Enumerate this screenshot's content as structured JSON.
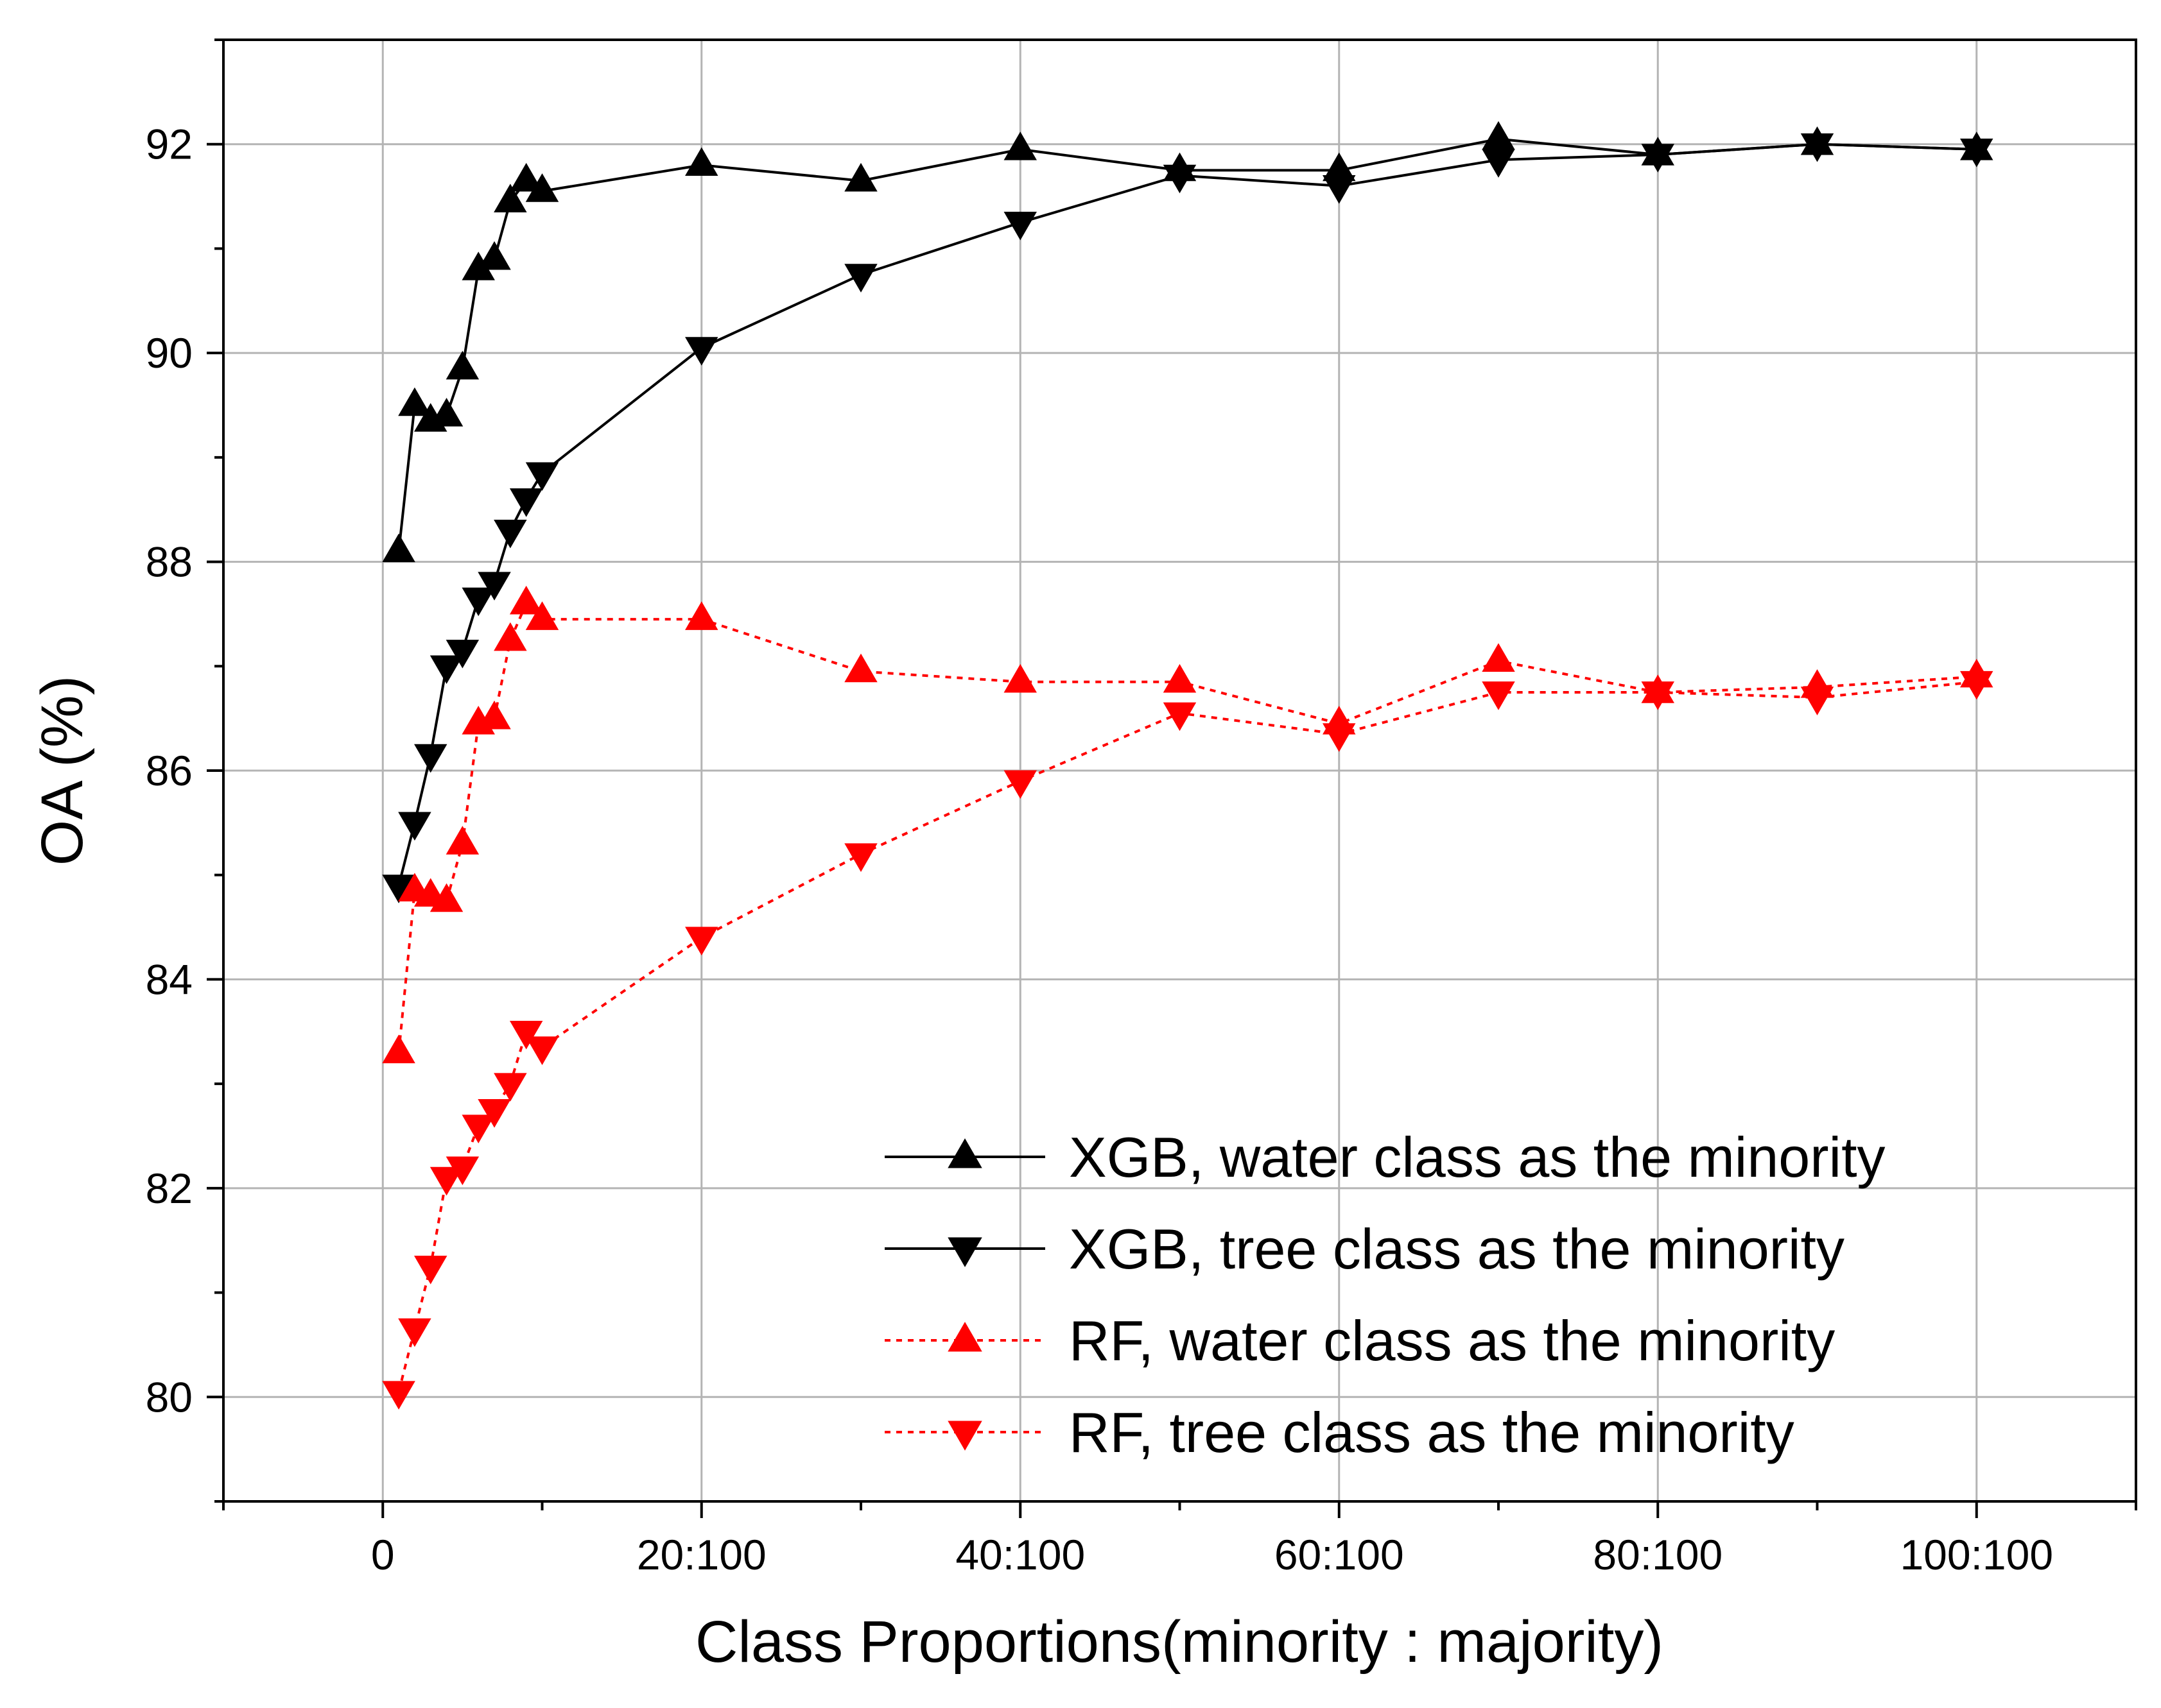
{
  "chart_data": {
    "type": "line",
    "title": "",
    "xlabel": "Class Proportions(minority : majority)",
    "ylabel": "OA (%)",
    "xlim": [
      -10,
      110
    ],
    "ylim": [
      79,
      93
    ],
    "grid": true,
    "legend_position": "bottom-right",
    "xticks": [
      {
        "value": 0,
        "label": "0"
      },
      {
        "value": 20,
        "label": "20:100"
      },
      {
        "value": 40,
        "label": "40:100"
      },
      {
        "value": 60,
        "label": "60:100"
      },
      {
        "value": 80,
        "label": "80:100"
      },
      {
        "value": 100,
        "label": "100:100"
      }
    ],
    "yticks": [
      {
        "value": 80,
        "label": "80"
      },
      {
        "value": 82,
        "label": "82"
      },
      {
        "value": 84,
        "label": "84"
      },
      {
        "value": 86,
        "label": "86"
      },
      {
        "value": 88,
        "label": "88"
      },
      {
        "value": 90,
        "label": "90"
      },
      {
        "value": 92,
        "label": "92"
      }
    ],
    "series": [
      {
        "name": "XGB, water class as the minority",
        "color": "#000000",
        "line": "solid",
        "marker": "triangle-up",
        "x": [
          1,
          2,
          3,
          4,
          5,
          6,
          7,
          8,
          9,
          10,
          20,
          30,
          40,
          50,
          60,
          70,
          80,
          90,
          100
        ],
        "y": [
          88.1,
          89.5,
          89.35,
          89.4,
          89.85,
          90.8,
          90.9,
          91.45,
          91.65,
          91.55,
          91.8,
          91.65,
          91.95,
          91.75,
          91.75,
          92.05,
          91.9,
          92.0,
          91.95
        ]
      },
      {
        "name": "XGB, tree class as the minority",
        "color": "#000000",
        "line": "solid",
        "marker": "triangle-down",
        "x": [
          1,
          2,
          3,
          4,
          5,
          6,
          7,
          8,
          9,
          10,
          20,
          30,
          40,
          50,
          60,
          70,
          80,
          90,
          100
        ],
        "y": [
          84.9,
          85.5,
          86.15,
          87.0,
          87.15,
          87.65,
          87.8,
          88.3,
          88.6,
          88.85,
          90.05,
          90.75,
          91.25,
          91.7,
          91.6,
          91.85,
          91.9,
          92.0,
          91.95
        ]
      },
      {
        "name": "RF, water class as the minority",
        "color": "#ff0000",
        "line": "dotted",
        "marker": "triangle-up",
        "x": [
          1,
          2,
          3,
          4,
          5,
          6,
          7,
          8,
          9,
          10,
          20,
          30,
          40,
          50,
          60,
          70,
          80,
          90,
          100
        ],
        "y": [
          83.3,
          84.85,
          84.8,
          84.75,
          85.3,
          86.45,
          86.5,
          87.25,
          87.6,
          87.45,
          87.45,
          86.95,
          86.85,
          86.85,
          86.45,
          87.05,
          86.75,
          86.8,
          86.9
        ]
      },
      {
        "name": "RF, tree class as the minority",
        "color": "#ff0000",
        "line": "dotted",
        "marker": "triangle-down",
        "x": [
          1,
          2,
          3,
          4,
          5,
          6,
          7,
          8,
          9,
          10,
          20,
          30,
          40,
          50,
          60,
          70,
          80,
          90,
          100
        ],
        "y": [
          80.05,
          80.65,
          81.25,
          82.1,
          82.2,
          82.6,
          82.75,
          83.0,
          83.5,
          83.35,
          84.4,
          85.2,
          85.9,
          86.55,
          86.35,
          86.75,
          86.75,
          86.7,
          86.85
        ]
      }
    ]
  }
}
